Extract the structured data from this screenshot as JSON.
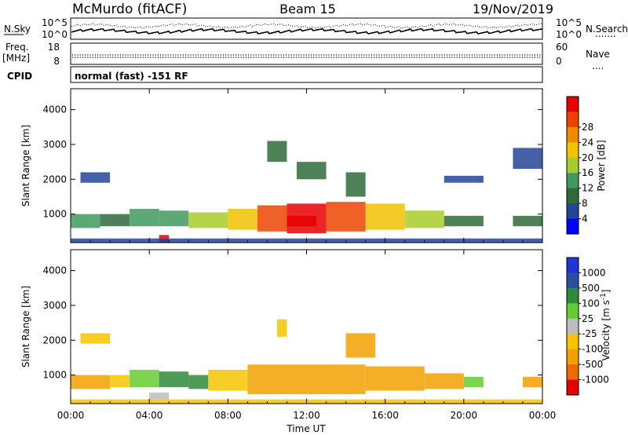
{
  "header": {
    "station": "McMurdo (fitACF)",
    "beam": "Beam 15",
    "date": "19/Nov/2019"
  },
  "noise_panel": {
    "left_label": "N.Sky",
    "left_ticks": [
      "10^5",
      "10^0"
    ],
    "right_ticks": [
      "10^5",
      "10^0"
    ],
    "right_label": "N.Search",
    "right_legend_line": "......."
  },
  "freq_panel": {
    "left_label_top": "Freq.",
    "left_label_unit": "[MHz]",
    "left_ticks": [
      "18",
      "8"
    ],
    "right_ticks": [
      "60",
      "0"
    ],
    "right_label": "Nave",
    "right_legend_line": "...."
  },
  "cpid_panel": {
    "label": "CPID",
    "text": "normal (fast) -151 RF"
  },
  "colors": {
    "power": [
      "#0000ff",
      "#224499",
      "#2f6b3a",
      "#3f9a5e",
      "#a8cc2a",
      "#f2c100",
      "#f08a00",
      "#ec4400",
      "#e60000"
    ],
    "velocity": [
      "#e60000",
      "#f06a00",
      "#f2a100",
      "#f6c400",
      "#bdbdbd",
      "#66cc33",
      "#2f8a3a",
      "#2b4fa0",
      "#1f36d6"
    ]
  },
  "chart_data": [
    {
      "type": "heatmap",
      "ylabel": "Slant Range [km]",
      "x_ticks": [
        "00:00",
        "04:00",
        "08:00",
        "12:00",
        "16:00",
        "20:00",
        "00:00"
      ],
      "y_ticks": [
        "1000",
        "2000",
        "3000",
        "4000"
      ],
      "xlim": [
        0,
        24
      ],
      "ylim": [
        180,
        4600
      ],
      "colorbar": {
        "label": "Power [dB]",
        "ticks": [
          "4",
          "8",
          "12",
          "16",
          "20",
          "24",
          "28"
        ],
        "range": [
          0,
          30
        ]
      },
      "bands": [
        {
          "t0": 0.0,
          "t1": 1.5,
          "r0": 600,
          "r1": 1000,
          "v": 10
        },
        {
          "t0": 1.5,
          "t1": 3.0,
          "r0": 650,
          "r1": 1000,
          "v": 8
        },
        {
          "t0": 3.0,
          "t1": 4.5,
          "r0": 650,
          "r1": 1150,
          "v": 11
        },
        {
          "t0": 4.5,
          "t1": 6.0,
          "r0": 650,
          "r1": 1100,
          "v": 10
        },
        {
          "t0": 6.0,
          "t1": 8.0,
          "r0": 600,
          "r1": 1050,
          "v": 14
        },
        {
          "t0": 8.0,
          "t1": 9.5,
          "r0": 550,
          "r1": 1150,
          "v": 18
        },
        {
          "t0": 9.5,
          "t1": 11.0,
          "r0": 500,
          "r1": 1250,
          "v": 22
        },
        {
          "t0": 11.0,
          "t1": 13.0,
          "r0": 450,
          "r1": 1300,
          "v": 26
        },
        {
          "t0": 13.0,
          "t1": 15.0,
          "r0": 500,
          "r1": 1350,
          "v": 22
        },
        {
          "t0": 15.0,
          "t1": 17.0,
          "r0": 550,
          "r1": 1300,
          "v": 18
        },
        {
          "t0": 17.0,
          "t1": 19.0,
          "r0": 600,
          "r1": 1100,
          "v": 14
        },
        {
          "t0": 19.0,
          "t1": 21.0,
          "r0": 650,
          "r1": 950,
          "v": 9
        },
        {
          "t0": 22.5,
          "t1": 24.0,
          "r0": 650,
          "r1": 950,
          "v": 7
        },
        {
          "t0": 11.0,
          "t1": 12.5,
          "r0": 650,
          "r1": 950,
          "v": 29
        },
        {
          "t0": 4.5,
          "t1": 5.0,
          "r0": 180,
          "r1": 400,
          "v": 26
        },
        {
          "t0": 10.0,
          "t1": 11.0,
          "r0": 2500,
          "r1": 3100,
          "v": 7
        },
        {
          "t0": 11.5,
          "t1": 13.0,
          "r0": 2000,
          "r1": 2500,
          "v": 9
        },
        {
          "t0": 14.0,
          "t1": 15.0,
          "r0": 1500,
          "r1": 2200,
          "v": 8
        },
        {
          "t0": 0.5,
          "t1": 2.0,
          "r0": 1900,
          "r1": 2200,
          "v": 5
        },
        {
          "t0": 22.5,
          "t1": 24.0,
          "r0": 2300,
          "r1": 2900,
          "v": 4
        },
        {
          "t0": 19.0,
          "t1": 21.0,
          "r0": 1900,
          "r1": 2100,
          "v": 5
        },
        {
          "t0": 0.0,
          "t1": 24.0,
          "r0": 180,
          "r1": 300,
          "v": 5
        }
      ]
    },
    {
      "type": "heatmap",
      "ylabel": "Slant Range [km]",
      "xlabel": "Time UT",
      "x_ticks": [
        "00:00",
        "04:00",
        "08:00",
        "12:00",
        "16:00",
        "20:00",
        "00:00"
      ],
      "y_ticks": [
        "1000",
        "2000",
        "3000",
        "4000"
      ],
      "xlim": [
        0,
        24
      ],
      "ylim": [
        180,
        4600
      ],
      "colorbar": {
        "label": "Velocity [m s^-1]",
        "ticks": [
          "1000",
          "500",
          "100",
          "25",
          "-25",
          "-100",
          "-500",
          "-1000"
        ],
        "range": [
          -1200,
          1200
        ]
      },
      "bands": [
        {
          "t0": 0.0,
          "t1": 2.0,
          "r0": 600,
          "r1": 1000,
          "v": -100
        },
        {
          "t0": 2.0,
          "t1": 3.0,
          "r0": 650,
          "r1": 1000,
          "v": -50
        },
        {
          "t0": 3.0,
          "t1": 4.5,
          "r0": 650,
          "r1": 1150,
          "v": 80
        },
        {
          "t0": 4.5,
          "t1": 6.0,
          "r0": 650,
          "r1": 1100,
          "v": 150
        },
        {
          "t0": 6.0,
          "t1": 7.0,
          "r0": 600,
          "r1": 1000,
          "v": 120
        },
        {
          "t0": 7.0,
          "t1": 9.0,
          "r0": 550,
          "r1": 1150,
          "v": -50
        },
        {
          "t0": 9.0,
          "t1": 15.0,
          "r0": 450,
          "r1": 1300,
          "v": -250
        },
        {
          "t0": 15.0,
          "t1": 18.0,
          "r0": 550,
          "r1": 1250,
          "v": -250
        },
        {
          "t0": 18.0,
          "t1": 20.0,
          "r0": 600,
          "r1": 1050,
          "v": -100
        },
        {
          "t0": 20.0,
          "t1": 21.0,
          "r0": 650,
          "r1": 950,
          "v": 60
        },
        {
          "t0": 23.0,
          "t1": 24.0,
          "r0": 650,
          "r1": 950,
          "v": -250
        },
        {
          "t0": 4.0,
          "t1": 5.0,
          "r0": 300,
          "r1": 500,
          "v": 0
        },
        {
          "t0": 14.0,
          "t1": 15.5,
          "r0": 1500,
          "r1": 2200,
          "v": -200
        },
        {
          "t0": 10.5,
          "t1": 11.0,
          "r0": 2100,
          "r1": 2600,
          "v": -70
        },
        {
          "t0": 0.5,
          "t1": 2.0,
          "r0": 1900,
          "r1": 2200,
          "v": -50
        },
        {
          "t0": 0.0,
          "t1": 24.0,
          "r0": 180,
          "r1": 300,
          "v": -50
        }
      ]
    }
  ]
}
